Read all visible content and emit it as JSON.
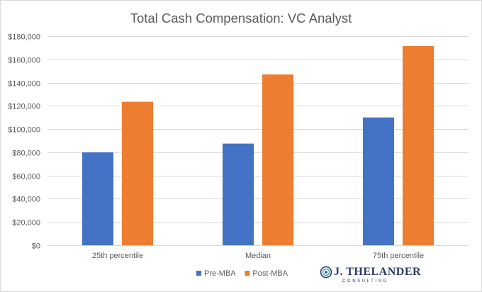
{
  "chart_data": {
    "type": "bar",
    "title": "Total Cash Compensation: VC Analyst",
    "xlabel": "",
    "ylabel": "",
    "categories": [
      "25th percentile",
      "Median",
      "75th percentile"
    ],
    "series": [
      {
        "name": "Pre-MBA",
        "color": "#4472c4",
        "values": [
          80000,
          87500,
          110000
        ]
      },
      {
        "name": "Post-MBA",
        "color": "#ed7d31",
        "values": [
          123500,
          147000,
          171500
        ]
      }
    ],
    "ylim": [
      0,
      180000
    ],
    "yticks": [
      0,
      20000,
      40000,
      60000,
      80000,
      100000,
      120000,
      140000,
      160000,
      180000
    ],
    "ytick_labels": [
      "$0",
      "$20,000",
      "$40,000",
      "$60,000",
      "$80,000",
      "$100,000",
      "$120,000",
      "$140,000",
      "$160,000",
      "$180,000"
    ],
    "grid": true,
    "legend_position": "bottom"
  },
  "logo": {
    "name": "J. THELANDER",
    "sub": "CONSULTING"
  }
}
